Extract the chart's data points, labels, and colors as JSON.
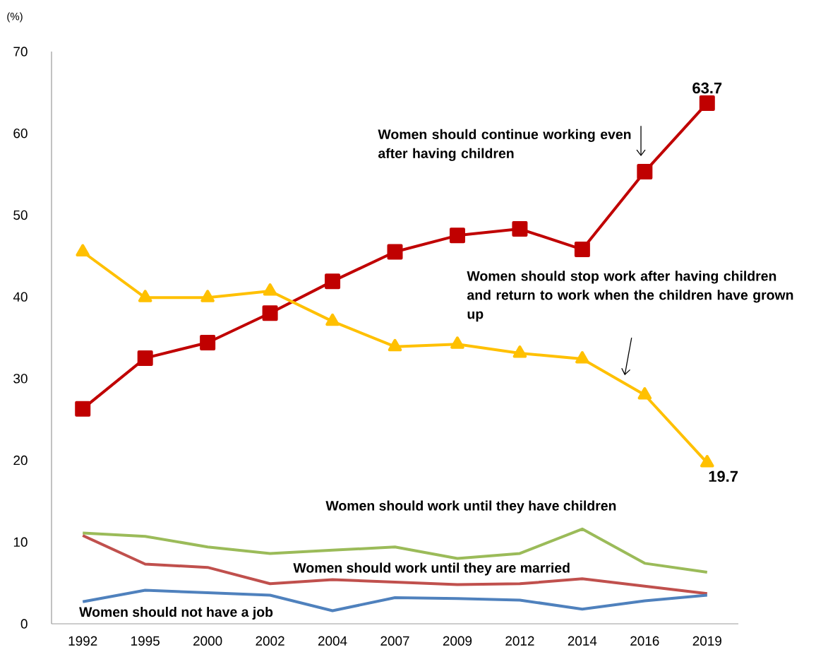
{
  "chart_data": {
    "type": "line",
    "ylabel": "(%)",
    "categories": [
      "1992",
      "1995",
      "2000",
      "2002",
      "2004",
      "2007",
      "2009",
      "2012",
      "2014",
      "2016",
      "2019"
    ],
    "ylim": [
      0,
      70
    ],
    "yticks": [
      0,
      10,
      20,
      30,
      40,
      50,
      60,
      70
    ],
    "grid": false,
    "legend": false,
    "line_style": "solid",
    "series": [
      {
        "name": "Women should continue working even after having children",
        "color": "#c00000",
        "marker": "square",
        "values": [
          26.3,
          32.5,
          34.4,
          38.0,
          41.9,
          45.5,
          47.5,
          48.3,
          45.8,
          55.3,
          63.7
        ],
        "value_labels": [
          null,
          null,
          null,
          null,
          null,
          null,
          null,
          null,
          null,
          null,
          "63.7"
        ]
      },
      {
        "name": "Women should stop work after having children and return to work when the children have grown up",
        "color": "#ffc000",
        "marker": "triangle",
        "values": [
          45.5,
          39.9,
          39.9,
          40.7,
          37.0,
          33.9,
          34.2,
          33.1,
          32.4,
          28.0,
          19.7
        ],
        "value_labels": [
          null,
          null,
          null,
          null,
          null,
          null,
          null,
          null,
          null,
          null,
          "19.7"
        ]
      },
      {
        "name": "Women should work until they have children",
        "color": "#9bbb59",
        "marker": "none",
        "values": [
          11.1,
          10.7,
          9.4,
          8.6,
          9.0,
          9.4,
          8.0,
          8.6,
          11.6,
          7.4,
          6.3
        ]
      },
      {
        "name": "Women should work until they are married",
        "color": "#c0504d",
        "marker": "none",
        "values": [
          10.8,
          7.3,
          6.9,
          4.9,
          5.4,
          5.1,
          4.8,
          4.9,
          5.5,
          4.6,
          3.7
        ]
      },
      {
        "name": "Women should not have a job",
        "color": "#4f81bd",
        "marker": "none",
        "values": [
          2.7,
          4.1,
          3.8,
          3.5,
          1.6,
          3.2,
          3.1,
          2.9,
          1.8,
          2.8,
          3.5
        ]
      }
    ]
  }
}
